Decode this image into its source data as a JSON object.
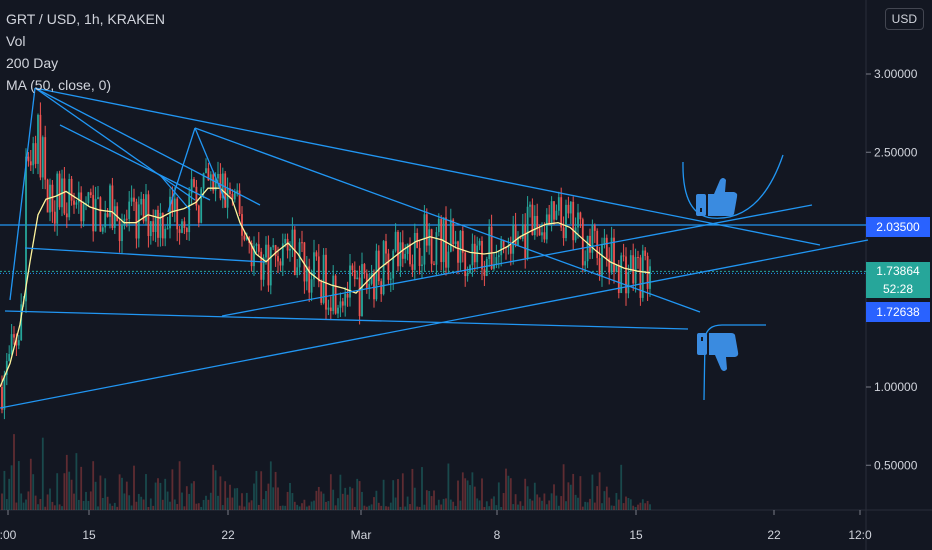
{
  "legend": {
    "symbol": "GRT / USD, 1h, KRAKEN",
    "vol": "Vol",
    "day": "200 Day",
    "ma": "MA (50, close, 0)"
  },
  "currency_button": "USD",
  "price_labels": {
    "level": "2.03500",
    "last": "1.73864",
    "countdown": "52:28",
    "low": "1.72638"
  },
  "colors": {
    "background": "#131722",
    "up": "#26a69a",
    "down": "#ef5350",
    "trendline": "#2196f3",
    "ma": "#fff59d",
    "last_price": "#26a69a"
  },
  "icons": [
    "thumbs-up-icon",
    "thumbs-down-icon"
  ],
  "chart_data": {
    "type": "candlestick",
    "title": "GRT / USD, 1h, KRAKEN",
    "y_ticks": [
      "3.00000",
      "2.50000",
      "1.00000",
      "0.50000"
    ],
    "y_tick_values": [
      3.0,
      2.5,
      1.0,
      0.5
    ],
    "x_ticks": [
      ":00",
      "15",
      "22",
      "Mar",
      "8",
      "15",
      "22",
      "12:0"
    ],
    "ylim": [
      0.25,
      3.35
    ],
    "horizontal_levels": [
      2.035,
      1.73864,
      1.72638
    ],
    "ma_series": [
      [
        0,
        1.0
      ],
      [
        10,
        1.15
      ],
      [
        20,
        1.4
      ],
      [
        30,
        1.8
      ],
      [
        38,
        2.1
      ],
      [
        46,
        2.2
      ],
      [
        56,
        2.22
      ],
      [
        66,
        2.25
      ],
      [
        78,
        2.2
      ],
      [
        90,
        2.15
      ],
      [
        100,
        2.13
      ],
      [
        112,
        2.12
      ],
      [
        124,
        2.05
      ],
      [
        136,
        2.05
      ],
      [
        148,
        2.1
      ],
      [
        160,
        2.08
      ],
      [
        172,
        2.12
      ],
      [
        184,
        2.14
      ],
      [
        196,
        2.18
      ],
      [
        208,
        2.27
      ],
      [
        220,
        2.27
      ],
      [
        232,
        2.2
      ],
      [
        240,
        2.05
      ],
      [
        248,
        1.95
      ],
      [
        256,
        1.85
      ],
      [
        266,
        1.8
      ],
      [
        276,
        1.86
      ],
      [
        288,
        1.92
      ],
      [
        298,
        1.85
      ],
      [
        310,
        1.73
      ],
      [
        320,
        1.68
      ],
      [
        332,
        1.65
      ],
      [
        344,
        1.63
      ],
      [
        356,
        1.6
      ],
      [
        368,
        1.68
      ],
      [
        380,
        1.76
      ],
      [
        392,
        1.82
      ],
      [
        404,
        1.88
      ],
      [
        416,
        1.93
      ],
      [
        430,
        1.96
      ],
      [
        442,
        1.94
      ],
      [
        456,
        1.89
      ],
      [
        470,
        1.86
      ],
      [
        484,
        1.85
      ],
      [
        496,
        1.86
      ],
      [
        508,
        1.9
      ],
      [
        520,
        1.96
      ],
      [
        532,
        2.0
      ],
      [
        546,
        2.04
      ],
      [
        558,
        2.05
      ],
      [
        570,
        2.02
      ],
      [
        582,
        1.95
      ],
      [
        596,
        1.87
      ],
      [
        610,
        1.8
      ],
      [
        624,
        1.76
      ],
      [
        638,
        1.74
      ],
      [
        650,
        1.73
      ]
    ]
  }
}
